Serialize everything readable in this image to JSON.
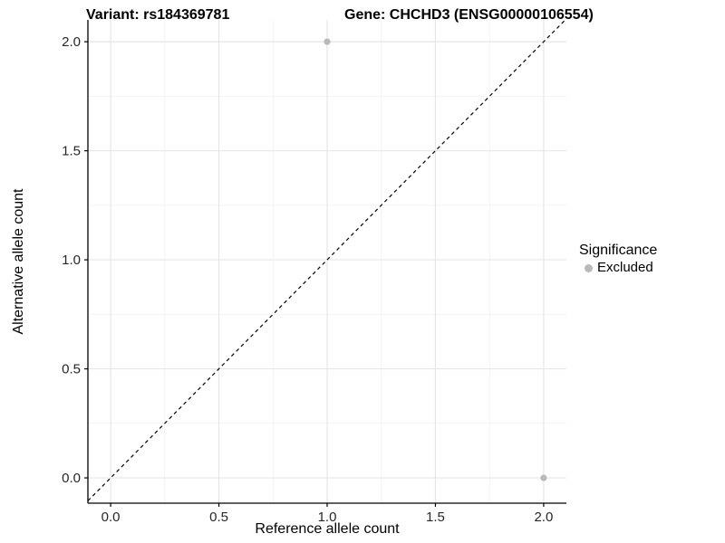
{
  "titles": {
    "variant": "Variant: rs184369781",
    "gene": "Gene: CHCHD3 (ENSG00000106554)"
  },
  "legend": {
    "title": "Significance",
    "items": [
      {
        "label": "Excluded",
        "color": "#b9b9b9"
      }
    ]
  },
  "colors": {
    "background": "#ffffff",
    "grid_major": "#e6e6e6",
    "grid_minor": "#f2f2f2",
    "axis_line": "#000000",
    "tick_label": "#262626",
    "title_text": "#000000",
    "reference_line": "#000000",
    "point": "#b9b9b9"
  },
  "chart_data": {
    "type": "scatter",
    "title_left": "Variant: rs184369781",
    "title_right": "Gene: CHCHD3 (ENSG00000106554)",
    "xlabel": "Reference allele count",
    "ylabel": "Alternative allele count",
    "xlim": [
      -0.105,
      2.105
    ],
    "ylim": [
      -0.116,
      2.1
    ],
    "x_ticks": [
      0,
      0.5,
      1,
      1.5,
      2
    ],
    "x_tick_labels": [
      "0.0",
      "0.5",
      "1.0",
      "1.5",
      "2.0"
    ],
    "y_ticks": [
      0,
      0.5,
      1,
      1.5,
      2
    ],
    "y_tick_labels": [
      "0.0",
      "0.5",
      "1.0",
      "1.5",
      "2.0"
    ],
    "minor_ticks_x": [
      0.25,
      0.75,
      1.25,
      1.75
    ],
    "minor_ticks_y": [
      0.25,
      0.75,
      1.25,
      1.75
    ],
    "grid": {
      "major": true,
      "minor": true
    },
    "reference_line": {
      "type": "identity",
      "slope": 1,
      "intercept": 0,
      "style": "dashed"
    },
    "series": [
      {
        "name": "Excluded",
        "color": "#b9b9b9",
        "point_radius": 3.6,
        "points": [
          [
            1,
            2
          ],
          [
            2,
            0
          ]
        ]
      }
    ],
    "legend_position": "right"
  }
}
